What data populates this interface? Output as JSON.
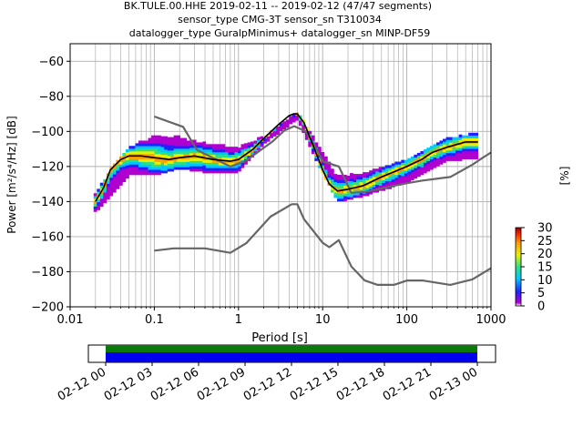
{
  "title": {
    "line1": "BK.TULE.00.HHE   2019-02-11 -- 2019-02-12  (47/47 segments)",
    "line2": "sensor_type CMG-3T sensor_sn T310034",
    "line3": "datalogger_type GuralpMinimus+ datalogger_sn MINP-DF59"
  },
  "colorbar": {
    "label": "[%]",
    "ticks": [
      "0",
      "5",
      "10",
      "15",
      "20",
      "25",
      "30"
    ],
    "range": [
      0,
      30
    ],
    "colors": [
      "#ffffff",
      "#b000d0",
      "#2020ff",
      "#00c8ff",
      "#30e080",
      "#e8f000",
      "#ffa000",
      "#ff2000",
      "#8a0000"
    ]
  },
  "timeline": {
    "ticks": [
      "02-12 00",
      "02-12 03",
      "02-12 06",
      "02-12 09",
      "02-12 12",
      "02-12 15",
      "02-12 18",
      "02-12 21",
      "02-13 00"
    ],
    "colors": {
      "coverage_top": "#0a7a0a",
      "coverage_bottom": "#0000ee"
    }
  },
  "chart_data": {
    "type": "heatmap",
    "xlabel": "Period [s]",
    "ylabel": "Power [m²/s⁴/Hz] [dB]",
    "xscale": "log",
    "xlim": [
      0.01,
      1000
    ],
    "ylim": [
      -200,
      -50
    ],
    "x_ticks": [
      "0.01",
      "0.1",
      "1",
      "10",
      "100",
      "1000"
    ],
    "y_ticks": [
      "−60",
      "−80",
      "−100",
      "−120",
      "−140",
      "−160",
      "−180",
      "−200"
    ],
    "grid": true,
    "series": [
      {
        "role": "noise-model-high",
        "color": "#666666",
        "x": [
          0.1,
          0.22,
          0.32,
          0.8,
          1.2,
          2.5,
          3.5,
          4.6,
          6.3,
          8,
          10,
          15.6,
          21.9,
          31.6,
          45,
          70,
          101,
          154,
          328,
          600,
          800,
          1000
        ],
        "y": [
          -91.5,
          -97.4,
          -110.5,
          -120,
          -117,
          -106,
          -99.5,
          -97,
          -100,
          -108,
          -117,
          -120,
          -135,
          -134.5,
          -133,
          -131,
          -129.5,
          -128,
          -126,
          -119,
          -115,
          -112
        ]
      },
      {
        "role": "noise-model-low",
        "color": "#666666",
        "x": [
          0.1,
          0.17,
          0.4,
          0.8,
          1.24,
          2.4,
          4.3,
          5.0,
          6.0,
          10.0,
          12.0,
          15.6,
          21.9,
          31.6,
          45,
          70,
          101,
          154,
          328,
          600,
          1000
        ],
        "y": [
          -168,
          -166.7,
          -166.7,
          -169.2,
          -163.7,
          -148.6,
          -141.5,
          -141.5,
          -150,
          -163.5,
          -166,
          -162,
          -177,
          -185,
          -187.5,
          -187.5,
          -185,
          -185,
          -187.5,
          -184.4,
          -178
        ]
      },
      {
        "role": "mode",
        "color": "#000000",
        "x": [
          0.02,
          0.025,
          0.03,
          0.04,
          0.05,
          0.07,
          0.1,
          0.15,
          0.2,
          0.3,
          0.5,
          0.8,
          1,
          1.5,
          2,
          3,
          4,
          4.5,
          5,
          6,
          7,
          8,
          10,
          12,
          15,
          20,
          30,
          50,
          100,
          150,
          200,
          300,
          500,
          700
        ],
        "y": [
          -140,
          -132,
          -122,
          -116,
          -114,
          -114,
          -115,
          -116,
          -115,
          -114,
          -116,
          -117,
          -116,
          -110,
          -104,
          -96,
          -91,
          -90,
          -90,
          -95,
          -103,
          -110,
          -122,
          -130,
          -134,
          -133,
          -131,
          -126,
          -120,
          -116,
          -112,
          -109,
          -106,
          -106
        ]
      }
    ],
    "density": {
      "description": "Probability density of PSD values (percent) across periods",
      "periods": [
        0.02,
        0.03,
        0.05,
        0.1,
        0.2,
        0.5,
        1,
        2,
        5,
        10,
        15,
        30,
        100,
        300,
        700
      ],
      "upper": [
        -136,
        -122,
        -110,
        -103,
        -104,
        -108,
        -110,
        -103,
        -89,
        -113,
        -126,
        -124,
        -117,
        -104,
        -101
      ],
      "lower": [
        -145,
        -136,
        -124,
        -124,
        -120,
        -123,
        -122,
        -106,
        -92,
        -123,
        -139,
        -136,
        -128,
        -116,
        -114
      ]
    }
  }
}
